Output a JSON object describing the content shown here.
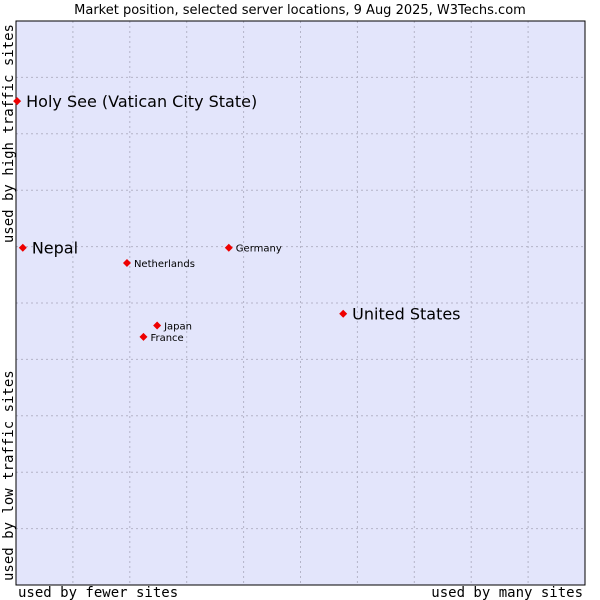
{
  "chart_data": {
    "type": "scatter",
    "title": "Market position, selected server locations, 9 Aug 2025, W3Techs.com",
    "xlabel_left": "used by fewer sites",
    "xlabel_right": "used by many sites",
    "ylabel_bottom": "used by low traffic sites",
    "ylabel_top": "used by high traffic sites",
    "xlim": [
      0,
      100
    ],
    "ylim": [
      0,
      100
    ],
    "grid": true,
    "points": [
      {
        "name": "Holy See (Vatican City State)",
        "x": 0.2,
        "y": 85.8,
        "emphasis": true
      },
      {
        "name": "Nepal",
        "x": 1.2,
        "y": 59.8,
        "emphasis": true
      },
      {
        "name": "United States",
        "x": 57.5,
        "y": 48.1,
        "emphasis": true
      },
      {
        "name": "Germany",
        "x": 37.4,
        "y": 59.8,
        "emphasis": false
      },
      {
        "name": "Netherlands",
        "x": 19.5,
        "y": 57.1,
        "emphasis": false
      },
      {
        "name": "Japan",
        "x": 24.8,
        "y": 46.0,
        "emphasis": false
      },
      {
        "name": "France",
        "x": 22.4,
        "y": 44.0,
        "emphasis": false
      }
    ]
  },
  "colors": {
    "plot_bg": "#e3e5fb",
    "grid": "#b4b4c8",
    "marker": "#ee0000",
    "border": "#000000"
  }
}
